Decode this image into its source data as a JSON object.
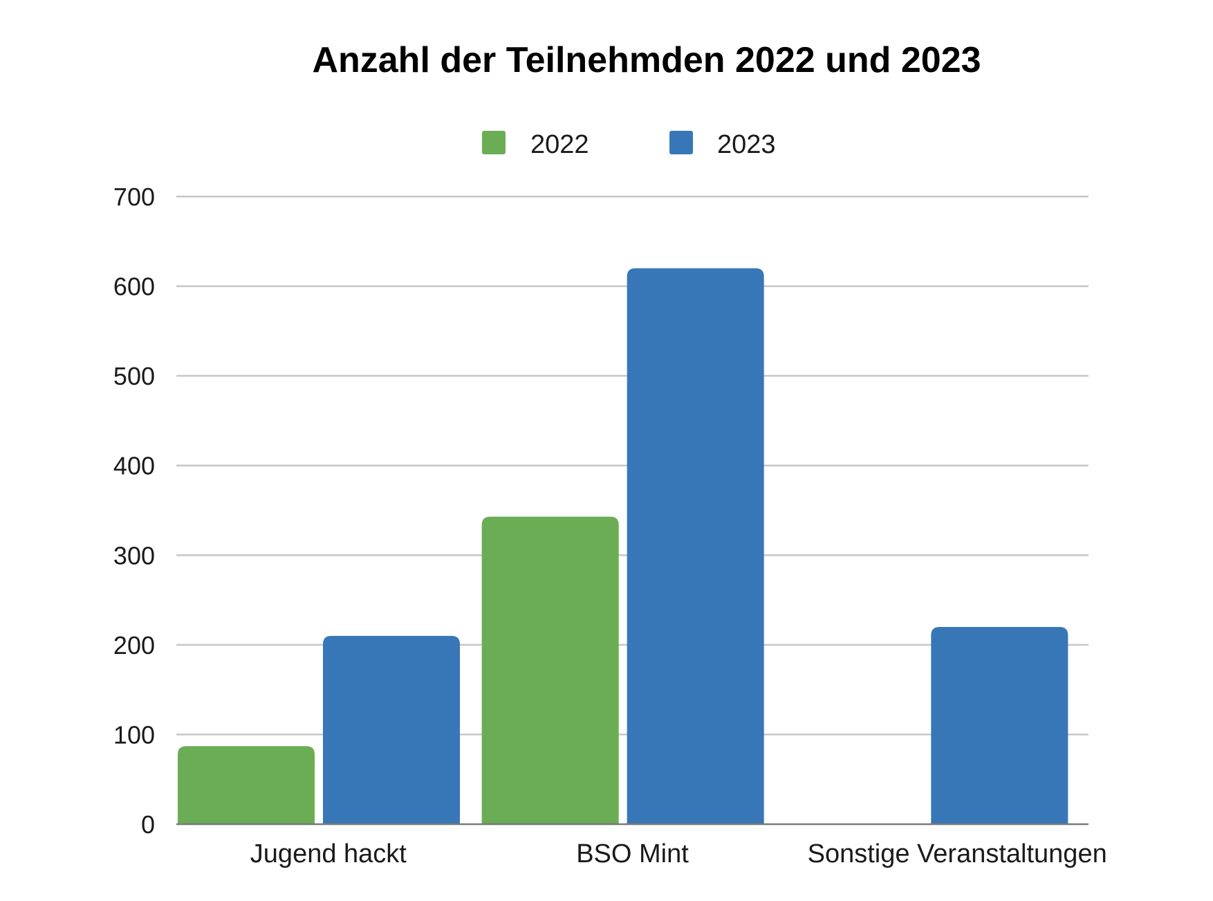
{
  "chart_data": {
    "type": "bar",
    "title": "Anzahl der Teilnehmden 2022 und 2023",
    "categories": [
      "Jugend hackt",
      "BSO Mint",
      "Sonstige Veranstaltungen"
    ],
    "series": [
      {
        "name": "2022",
        "values": [
          87,
          343,
          0
        ],
        "color": "#6aad55"
      },
      {
        "name": "2023",
        "values": [
          210,
          620,
          220
        ],
        "color": "#3777b7"
      }
    ],
    "yticks": [
      0,
      100,
      200,
      300,
      400,
      500,
      600,
      700
    ],
    "ylim": [
      0,
      700
    ],
    "grid": true,
    "legend": "top-center"
  }
}
